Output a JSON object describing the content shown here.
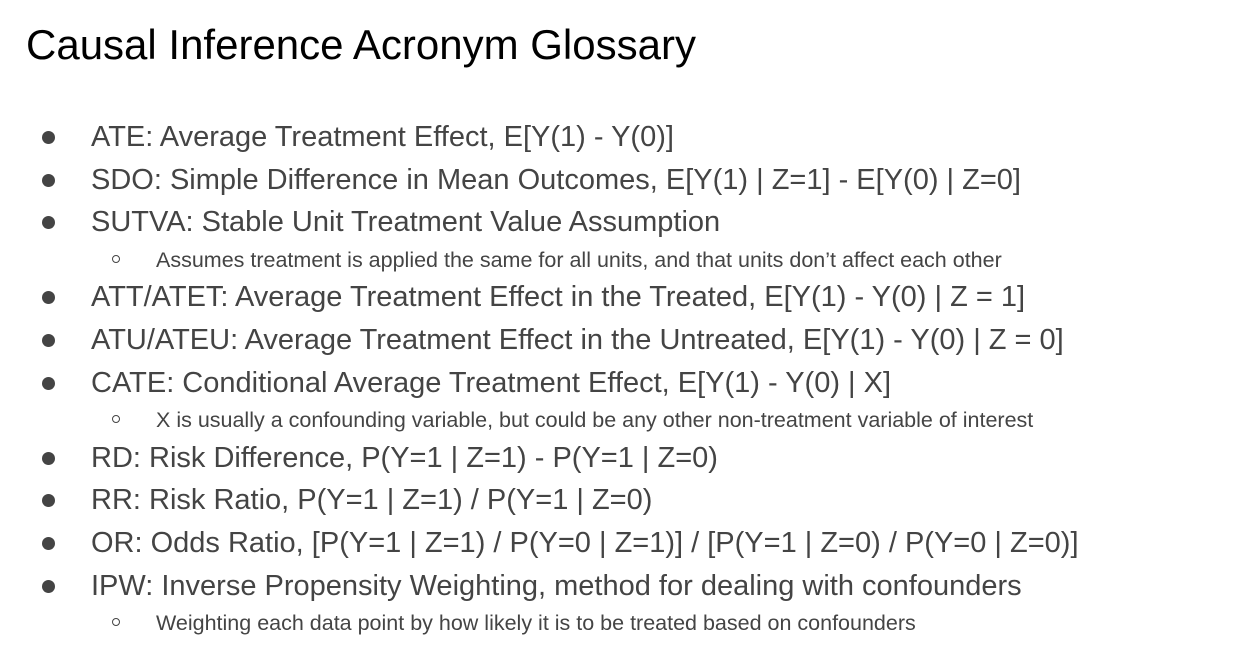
{
  "title": "Causal Inference Acronym Glossary",
  "entries": [
    {
      "level": 1,
      "text": "ATE: Average Treatment Effect, E[Y(1) - Y(0)]"
    },
    {
      "level": 1,
      "text": "SDO: Simple Difference in Mean Outcomes, E[Y(1) | Z=1] - E[Y(0) | Z=0]"
    },
    {
      "level": 1,
      "text": "SUTVA: Stable Unit Treatment Value Assumption"
    },
    {
      "level": 2,
      "text": "Assumes treatment is applied the same for all units, and that units don’t affect each other"
    },
    {
      "level": 1,
      "text": "ATT/ATET: Average Treatment Effect in the Treated, E[Y(1) - Y(0) | Z = 1]"
    },
    {
      "level": 1,
      "text": "ATU/ATEU: Average Treatment Effect in the Untreated, E[Y(1) - Y(0) | Z = 0]"
    },
    {
      "level": 1,
      "text": "CATE: Conditional Average Treatment Effect, E[Y(1) - Y(0) | X]"
    },
    {
      "level": 2,
      "text": "X is usually a confounding variable, but could be any other non-treatment variable of interest"
    },
    {
      "level": 1,
      "text": "RD: Risk Difference, P(Y=1 | Z=1) - P(Y=1 | Z=0)"
    },
    {
      "level": 1,
      "text": "RR: Risk Ratio, P(Y=1 | Z=1) / P(Y=1 | Z=0)"
    },
    {
      "level": 1,
      "text": "OR: Odds Ratio, [P(Y=1 | Z=1) / P(Y=0 | Z=1)] / [P(Y=1 | Z=0) / P(Y=0 | Z=0)]"
    },
    {
      "level": 1,
      "text": "IPW: Inverse Propensity Weighting, method for dealing with confounders"
    },
    {
      "level": 2,
      "text": "Weighting each data point by how likely it is to be treated based on confounders"
    }
  ]
}
